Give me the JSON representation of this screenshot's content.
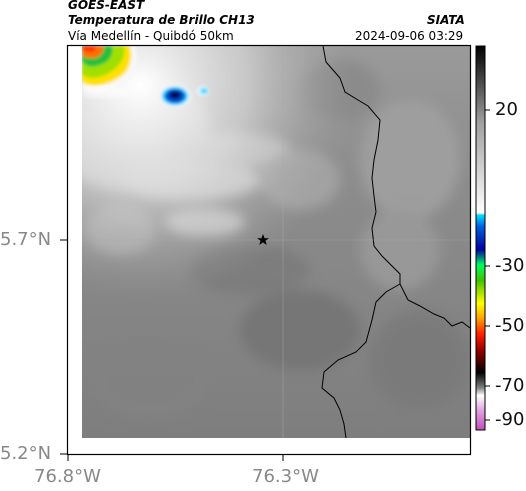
{
  "header": {
    "satellite": "GOES-EAST",
    "product": "Temperatura de Brillo CH13",
    "region": "Vía Medellín - Quibdó 50km",
    "agency": "SIATA",
    "datetime": "2024-09-06 03:29"
  },
  "axes": {
    "lat_ticks": [
      "5.7°N",
      "5.2°N"
    ],
    "lon_ticks": [
      "76.8°W",
      "76.3°W"
    ]
  },
  "colorbar": {
    "labels": [
      "20",
      "-30",
      "-50",
      "-70",
      "-90"
    ]
  },
  "marker": {
    "icon": "star-icon"
  },
  "colors": {
    "tick_text": "#888888",
    "frame": "#000000"
  }
}
